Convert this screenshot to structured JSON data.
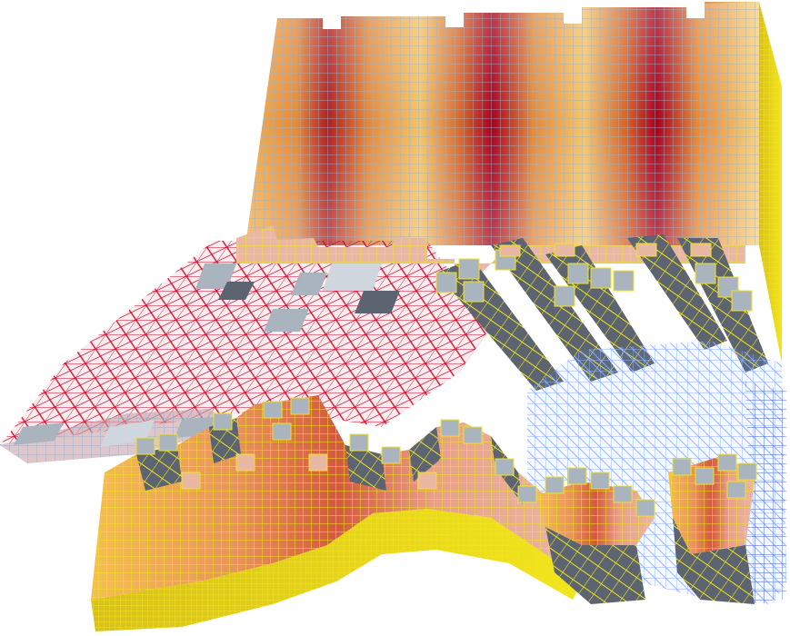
{
  "scene": {
    "subject": "",
    "background": "#ffffff"
  },
  "palette": {
    "heat_hot": "#a8001e",
    "heat_mid": "#d8642a",
    "heat_warm": "#f0a040",
    "heat_cool": "#f6d27a",
    "gridline_yellow": "#f2e51c",
    "gridline_gray": "#9eb3c8",
    "shadow_face": "#5b6470",
    "cap_gray": "#a9b4bf",
    "wire_red": "#c8102e",
    "wire_blue": "#8fb0ff",
    "wire_blue_dark": "#3c56c9"
  },
  "regions": [
    {
      "id": "back-wall-slab",
      "style": "solid",
      "color": "heat"
    },
    {
      "id": "red-wireframe-region",
      "style": "wireframe",
      "color": "wire_red"
    },
    {
      "id": "front-stepped-block",
      "style": "solid",
      "color": "heat"
    },
    {
      "id": "middle-stepped-block",
      "style": "solid",
      "color": "heat"
    },
    {
      "id": "blue-wireframe-region",
      "style": "wireframe",
      "color": "wire_blue"
    }
  ]
}
